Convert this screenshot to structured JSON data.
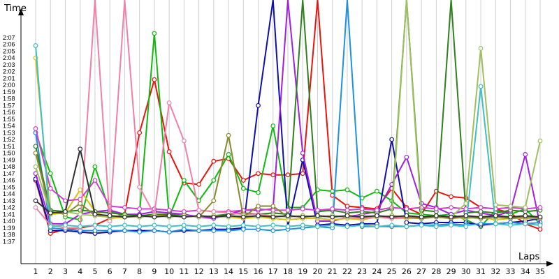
{
  "chart_data": {
    "type": "line",
    "xlabel": "Laps",
    "ylabel": "Time",
    "x": [
      1,
      2,
      3,
      4,
      5,
      6,
      7,
      8,
      9,
      10,
      11,
      12,
      13,
      14,
      15,
      16,
      17,
      18,
      19,
      20,
      21,
      22,
      23,
      24,
      25,
      26,
      27,
      28,
      29,
      30,
      31,
      32,
      33,
      34,
      35
    ],
    "xlim": [
      1,
      35
    ],
    "ylim_seconds": [
      96,
      128
    ],
    "y_ticks": [
      "1:37",
      "1:38",
      "1:39",
      "1:40",
      "1:41",
      "1:42",
      "1:43",
      "1:44",
      "1:45",
      "1:46",
      "1:47",
      "1:48",
      "1:49",
      "1:50",
      "1:51",
      "1:52",
      "1:53",
      "1:54",
      "1:55",
      "1:56",
      "1:57",
      "1:58",
      "1:59",
      "2:00",
      "2:01",
      "2:02",
      "2:03",
      "2:04",
      "2:05",
      "2:06",
      "2:07"
    ],
    "grid": "vertical",
    "series": [
      {
        "color": "#e8140e",
        "values": [
          106.0,
          98.2,
          98.8,
          99.0,
          99.4,
          100.4,
          101.0,
          113.0,
          120.8,
          110.2,
          105.6,
          105.4,
          108.8,
          109.2,
          106.0,
          107.0,
          106.8,
          106.8,
          107.0,
          145.0,
          103.8,
          102.2,
          102.0,
          101.8,
          104.8,
          102.0,
          101.0,
          104.4,
          103.6,
          103.4,
          102.0,
          101.8,
          101.2,
          99.6,
          98.8
        ]
      },
      {
        "color": "#10b810",
        "values": [
          113.0,
          107.0,
          100.6,
          100.2,
          108.0,
          101.4,
          100.8,
          101.0,
          127.6,
          100.6,
          106.0,
          103.0,
          106.0,
          109.8,
          104.8,
          104.2,
          114.0,
          102.0,
          102.0,
          104.6,
          104.4,
          104.6,
          103.4,
          104.4,
          103.0,
          101.2,
          101.0,
          100.8,
          101.0,
          100.2,
          99.2,
          101.6,
          101.0,
          101.8,
          99.6
        ]
      },
      {
        "color": "#1010a8",
        "values": [
          106.2,
          98.6,
          98.6,
          98.4,
          98.2,
          98.4,
          98.6,
          98.6,
          98.6,
          98.4,
          98.6,
          98.6,
          98.8,
          98.8,
          99.0,
          117.0,
          140.0,
          99.2,
          109.0,
          99.4,
          99.6,
          99.4,
          99.6,
          99.6,
          112.0,
          99.8,
          99.6,
          99.8,
          99.8,
          99.8,
          99.4,
          99.6,
          99.8,
          100.0,
          100.4
        ]
      },
      {
        "color": "#2090e0",
        "values": [
          113.0,
          99.0,
          98.8,
          98.6,
          98.6,
          98.6,
          98.6,
          98.4,
          98.6,
          98.4,
          98.8,
          98.6,
          98.6,
          98.6,
          98.8,
          98.8,
          98.6,
          98.8,
          99.0,
          99.2,
          99.0,
          140.0,
          99.2,
          99.2,
          99.2,
          99.2,
          99.4,
          99.4,
          99.6,
          99.4,
          99.6,
          99.6,
          99.8,
          99.6,
          99.8
        ]
      },
      {
        "color": "#a020e0",
        "values": [
          107.0,
          99.6,
          99.6,
          101.0,
          101.4,
          101.6,
          101.0,
          101.0,
          101.4,
          101.2,
          101.0,
          100.6,
          100.4,
          101.0,
          101.6,
          101.6,
          101.8,
          140.0,
          110.0,
          100.0,
          100.0,
          100.6,
          101.0,
          101.4,
          105.4,
          109.4,
          102.6,
          102.0,
          101.0,
          101.6,
          101.2,
          100.8,
          101.4,
          109.8,
          99.4
        ]
      },
      {
        "color": "#d8c010",
        "values": [
          124.0,
          101.0,
          101.2,
          104.6,
          101.4,
          100.4,
          100.6,
          100.6,
          100.8,
          101.0,
          100.6,
          100.8,
          100.6,
          100.6,
          100.4,
          100.6,
          100.4,
          100.2,
          100.4,
          100.4,
          100.2,
          100.4,
          100.2,
          100.6,
          100.4,
          100.4,
          100.4,
          100.6,
          100.6,
          100.4,
          100.6,
          100.2,
          100.4,
          100.4,
          100.4
        ]
      },
      {
        "color": "#308020",
        "values": [
          111.0,
          101.6,
          101.4,
          101.6,
          101.4,
          101.2,
          101.0,
          100.8,
          101.0,
          101.0,
          100.8,
          100.6,
          100.8,
          101.0,
          101.2,
          101.0,
          101.2,
          101.0,
          140.0,
          101.4,
          101.6,
          101.2,
          101.4,
          101.2,
          101.8,
          140.0,
          101.6,
          101.4,
          140.0,
          101.2,
          101.4,
          101.2,
          101.6,
          101.4,
          101.6
        ]
      },
      {
        "color": "#d040d0",
        "values": [
          113.6,
          104.8,
          103.0,
          103.2,
          106.0,
          102.2,
          102.0,
          101.8,
          101.8,
          101.6,
          101.4,
          101.6,
          101.4,
          101.4,
          101.6,
          101.8,
          101.6,
          101.6,
          101.8,
          101.6,
          101.8,
          101.6,
          101.8,
          101.6,
          102.0,
          101.8,
          102.0,
          101.8,
          102.0,
          101.8,
          102.0,
          101.8,
          102.0,
          101.8,
          102.0
        ]
      },
      {
        "color": "#f080a8",
        "values": [
          102.0,
          99.4,
          99.0,
          99.0,
          140.0,
          100.0,
          140.0,
          105.0,
          101.0,
          117.4,
          111.8,
          101.6,
          101.4,
          101.2,
          101.0,
          101.0,
          100.8,
          100.6,
          100.8,
          100.6,
          100.8,
          100.6,
          100.4,
          100.6,
          100.4,
          100.6,
          100.4,
          100.6,
          100.4,
          100.6,
          100.4,
          100.6,
          100.4,
          100.6,
          100.4
        ]
      },
      {
        "color": "#888830",
        "values": [
          110.0,
          101.4,
          101.0,
          102.6,
          100.8,
          100.6,
          100.8,
          100.6,
          100.8,
          100.6,
          100.8,
          100.6,
          103.0,
          112.6,
          100.6,
          102.2,
          102.2,
          100.6,
          100.8,
          100.6,
          100.8,
          100.6,
          100.8,
          100.6,
          100.8,
          100.6,
          100.4,
          100.6,
          100.4,
          100.6,
          100.4,
          100.6,
          100.4,
          100.6,
          100.4
        ]
      },
      {
        "color": "#a0c060",
        "values": [
          108.0,
          101.2,
          101.4,
          101.0,
          100.8,
          100.6,
          100.8,
          100.6,
          100.8,
          100.6,
          100.8,
          100.6,
          100.8,
          100.6,
          100.8,
          100.6,
          100.8,
          100.6,
          100.8,
          100.6,
          100.8,
          100.6,
          100.8,
          100.6,
          100.8,
          140.0,
          100.6,
          100.8,
          100.6,
          102.6,
          125.4,
          102.4,
          102.2,
          102.0,
          111.8
        ]
      },
      {
        "color": "#40c0c0",
        "values": [
          125.8,
          99.2,
          99.4,
          99.2,
          99.4,
          99.2,
          99.4,
          99.2,
          99.4,
          99.2,
          99.4,
          99.2,
          99.4,
          99.2,
          99.4,
          99.2,
          99.4,
          99.2,
          99.4,
          99.2,
          99.4,
          99.2,
          99.4,
          99.2,
          99.4,
          99.2,
          99.4,
          99.2,
          99.4,
          99.2,
          119.8,
          99.6,
          99.4,
          99.6,
          99.4
        ]
      },
      {
        "color": "#303030",
        "values": [
          103.0,
          101.2,
          101.4,
          110.6,
          101.0,
          100.8,
          100.6,
          100.8,
          100.6,
          100.8,
          100.6,
          100.8,
          100.6,
          100.8,
          100.6,
          100.8,
          100.6,
          100.8,
          100.6,
          100.8,
          100.6,
          100.8,
          100.6,
          100.8,
          100.6,
          100.8,
          100.6,
          100.8,
          100.6,
          100.8,
          100.6,
          100.8,
          100.6,
          100.8,
          100.6
        ]
      }
    ]
  }
}
